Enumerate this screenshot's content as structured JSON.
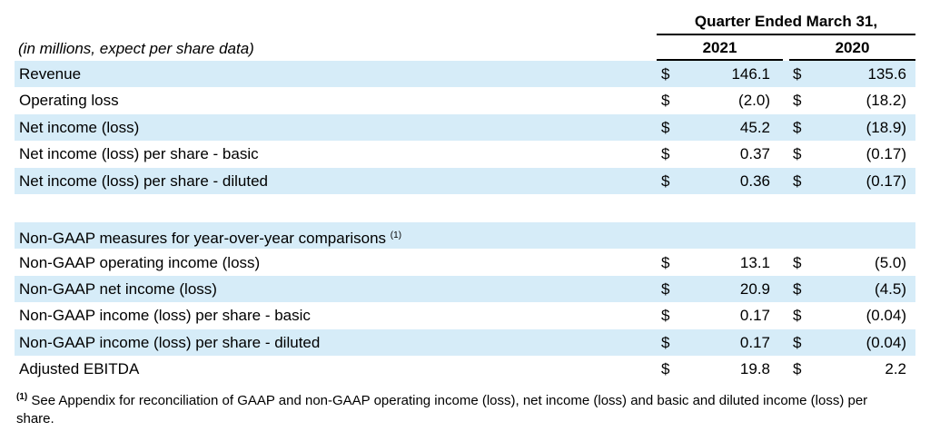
{
  "header": {
    "period": "Quarter Ended March 31,",
    "col1": "2021",
    "col2": "2020",
    "units": "(in millions, expect per share data)"
  },
  "rows": [
    {
      "label": "Revenue",
      "c1": "146.1",
      "c2": "135.6",
      "shaded": true
    },
    {
      "label": "Operating loss",
      "c1": "(2.0)",
      "c2": "(18.2)",
      "shaded": false
    },
    {
      "label": "Net income (loss)",
      "c1": "45.2",
      "c2": "(18.9)",
      "shaded": true
    },
    {
      "label": "Net income (loss) per share - basic",
      "c1": "0.37",
      "c2": "(0.17)",
      "shaded": false
    },
    {
      "label": "Net income (loss) per share - diluted",
      "c1": "0.36",
      "c2": "(0.17)",
      "shaded": true
    }
  ],
  "nongaap": {
    "title": "Non-GAAP measures for year-over-year comparisons",
    "note": "(1)"
  },
  "nongaap_rows": [
    {
      "label": "Non-GAAP operating income (loss)",
      "c1": "13.1",
      "c2": "(5.0)"
    },
    {
      "label": "Non-GAAP net income (loss)",
      "c1": "20.9",
      "c2": "(4.5)"
    },
    {
      "label": "Non-GAAP  income (loss) per share - basic",
      "c1": "0.17",
      "c2": "(0.04)"
    },
    {
      "label": "Non-GAAP income (loss) per share - diluted",
      "c1": "0.17",
      "c2": "(0.04)"
    },
    {
      "label": "Adjusted EBITDA",
      "c1": "19.8",
      "c2": "2.2"
    }
  ],
  "currency": "$",
  "footnote": {
    "mark": "(1)",
    "text": " See Appendix for reconciliation of GAAP and non-GAAP operating income (loss), net income (loss) and basic and diluted income (loss) per share."
  },
  "colors": {
    "shade": "#d6ecf8"
  }
}
